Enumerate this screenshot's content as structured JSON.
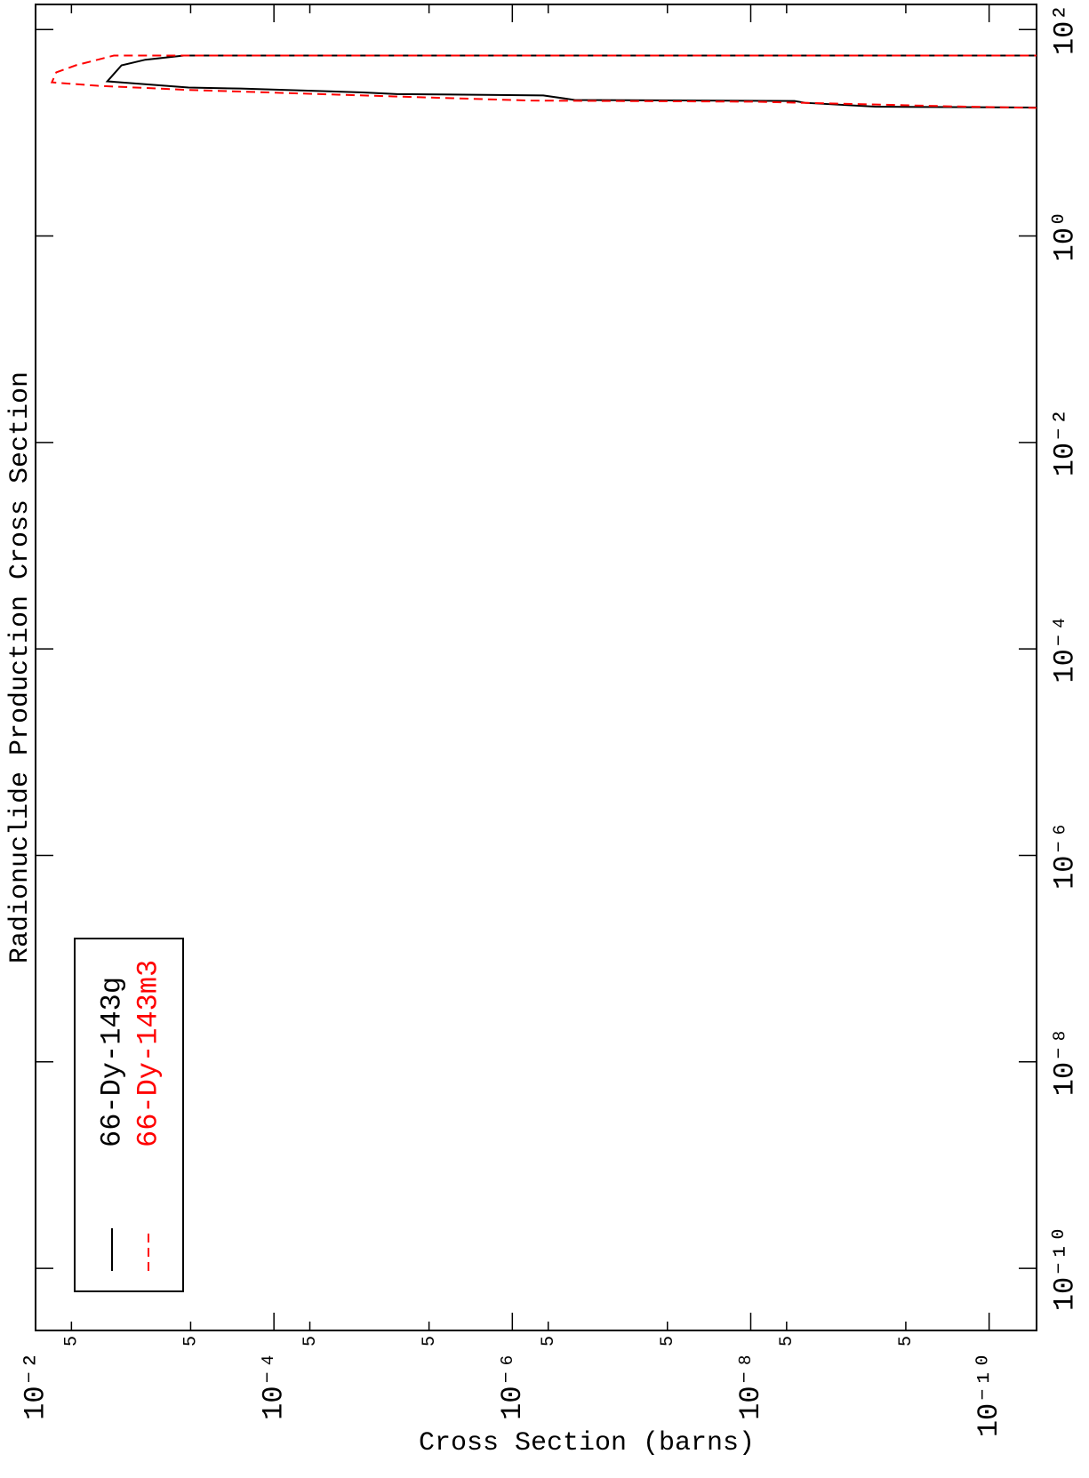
{
  "chart_data": {
    "type": "line",
    "title": "Radionuclide Production Cross Section",
    "ylabel": "Cross Section (barns)",
    "xscale": "log",
    "yscale": "log",
    "xlim": [
      2.5e-11,
      175
    ],
    "ylim": [
      4e-11,
      0.01
    ],
    "xticks": [
      {
        "value": 1e-10,
        "label": "10⁻¹⁰"
      },
      {
        "value": 1e-08,
        "label": "10⁻⁸"
      },
      {
        "value": 1e-06,
        "label": "10⁻⁶"
      },
      {
        "value": 0.0001,
        "label": "10⁻⁴"
      },
      {
        "value": 0.01,
        "label": "10⁻²"
      },
      {
        "value": 1,
        "label": "10⁰"
      },
      {
        "value": 100,
        "label": "10²"
      }
    ],
    "yticks": [
      {
        "value": 0.01,
        "label": "10⁻²"
      },
      {
        "value": 0.005,
        "label": "5"
      },
      {
        "value": 0.0005,
        "label": "5"
      },
      {
        "value": 0.0001,
        "label": "10⁻⁴"
      },
      {
        "value": 5e-05,
        "label": "5"
      },
      {
        "value": 5e-06,
        "label": "5"
      },
      {
        "value": 1e-06,
        "label": "10⁻⁶"
      },
      {
        "value": 5e-07,
        "label": "5"
      },
      {
        "value": 5e-08,
        "label": "5"
      },
      {
        "value": 1e-08,
        "label": "10⁻⁸"
      },
      {
        "value": 5e-09,
        "label": "5"
      },
      {
        "value": 5e-10,
        "label": "5"
      },
      {
        "value": 1e-10,
        "label": "10⁻¹⁰"
      }
    ],
    "legend": "upper left",
    "series": [
      {
        "name": "66-Dy-143g",
        "color": "#000000",
        "style": "solid",
        "x": [
          17.5,
          17.9,
          19.5,
          20.3,
          20.8,
          23,
          23.7,
          24.6,
          26.8,
          27.4,
          31.5,
          45,
          51,
          56,
          56
        ],
        "values": [
          3e-11,
          9e-10,
          3.5e-09,
          4.3e-09,
          3e-07,
          5.5e-07,
          9.3e-06,
          1.8e-05,
          0.00019,
          0.00052,
          0.0025,
          0.0019,
          0.0012,
          0.00057,
          3e-11
        ]
      },
      {
        "name": "66-Dy-143m3",
        "color": "#ff0000",
        "style": "dashed",
        "x": [
          17.3,
          18,
          20,
          20.5,
          22.5,
          26,
          28.5,
          30.8,
          38.5,
          45,
          56,
          56
        ],
        "values": [
          3e-11,
          2e-10,
          9e-09,
          7e-07,
          1e-05,
          0.00052,
          0.003,
          0.0073,
          0.0067,
          0.0046,
          0.0022,
          3e-11
        ]
      }
    ]
  }
}
